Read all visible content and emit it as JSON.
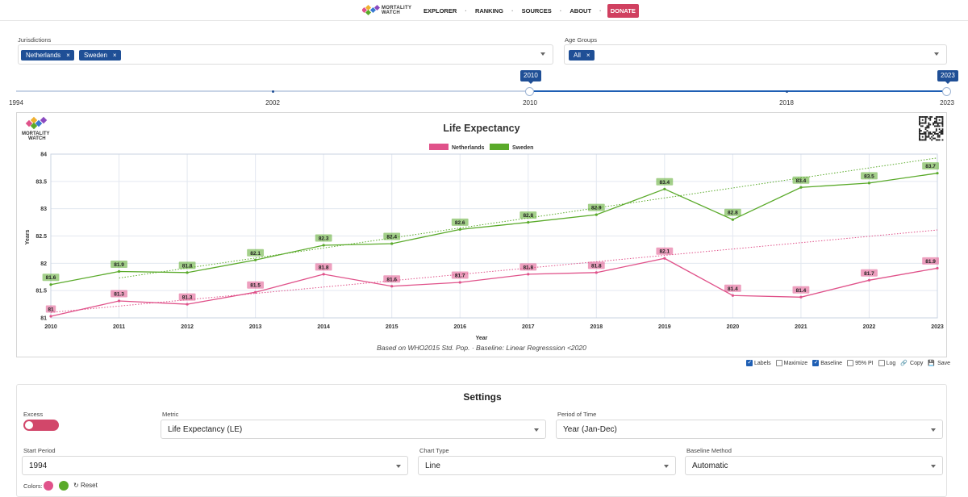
{
  "nav": {
    "logo_text": "MORTALITY WATCH",
    "items": [
      "EXPLORER",
      "RANKING",
      "SOURCES",
      "ABOUT"
    ],
    "donate": "DONATE"
  },
  "jurisdictions": {
    "label": "Jurisdictions",
    "chips": [
      "Netherlands",
      "Sweden"
    ]
  },
  "age_groups": {
    "label": "Age Groups",
    "chips": [
      "All"
    ]
  },
  "range_slider": {
    "start_label": "2010",
    "end_label": "2023",
    "ticks": [
      "1994",
      "2002",
      "2010",
      "2018",
      "2023"
    ],
    "min": 1994,
    "max": 2023,
    "start": 2010,
    "end": 2023
  },
  "chart_data": {
    "type": "line",
    "title": "Life Expectancy",
    "subtitle": "Based on WHO2015 Std. Pop. · Baseline: Linear Regresssion <2020",
    "xlabel": "Year",
    "ylabel": "Years",
    "ylim": [
      81,
      84
    ],
    "yticks": [
      81,
      81.5,
      82,
      82.5,
      83,
      83.5,
      84
    ],
    "x": [
      2010,
      2011,
      2012,
      2013,
      2014,
      2015,
      2016,
      2017,
      2018,
      2019,
      2020,
      2021,
      2022,
      2023
    ],
    "series": [
      {
        "name": "Netherlands",
        "color": "#e0528a",
        "values": [
          81.03,
          81.31,
          81.25,
          81.47,
          81.8,
          81.58,
          81.65,
          81.8,
          81.83,
          82.09,
          81.41,
          81.38,
          81.69,
          81.91
        ],
        "labels": [
          "81",
          "81.3",
          "81.3",
          "81.5",
          "81.8",
          "81.6",
          "81.7",
          "81.8",
          "81.8",
          "82.1",
          "81.4",
          "81.4",
          "81.7",
          "81.9"
        ],
        "baseline": [
          [
            2010,
            81.1
          ],
          [
            2023,
            82.61
          ]
        ]
      },
      {
        "name": "Sweden",
        "color": "#5aaa2a",
        "values": [
          81.61,
          81.85,
          81.83,
          82.06,
          82.33,
          82.36,
          82.62,
          82.75,
          82.89,
          83.36,
          82.8,
          83.39,
          83.47,
          83.65
        ],
        "labels": [
          "81.6",
          "81.9",
          "81.8",
          "82.1",
          "82.3",
          "82.4",
          "82.6",
          "82.8",
          "82.9",
          "83.4",
          "82.8",
          "83.4",
          "83.5",
          "83.7"
        ],
        "baseline": [
          [
            2011,
            81.73
          ],
          [
            2023,
            83.93
          ]
        ]
      }
    ],
    "legend_position": "top-center"
  },
  "toolbar": {
    "labels": "Labels",
    "maximize": "Maximize",
    "baseline": "Baseline",
    "pi": "95% PI",
    "log": "Log",
    "copy": "Copy",
    "save": "Save",
    "checked": {
      "labels": true,
      "maximize": false,
      "baseline": true,
      "pi": false,
      "log": false
    }
  },
  "settings": {
    "title": "Settings",
    "excess_label": "Excess",
    "metric_label": "Metric",
    "metric_value": "Life Expectancy (LE)",
    "period_label": "Period of Time",
    "period_value": "Year (Jan-Dec)",
    "start_label": "Start Period",
    "start_value": "1994",
    "chart_type_label": "Chart Type",
    "chart_type_value": "Line",
    "baseline_method_label": "Baseline Method",
    "baseline_method_value": "Automatic",
    "colors_label": "Colors:",
    "reset_label": "Reset",
    "color_a": "#e0528a",
    "color_b": "#5aaa2a"
  }
}
